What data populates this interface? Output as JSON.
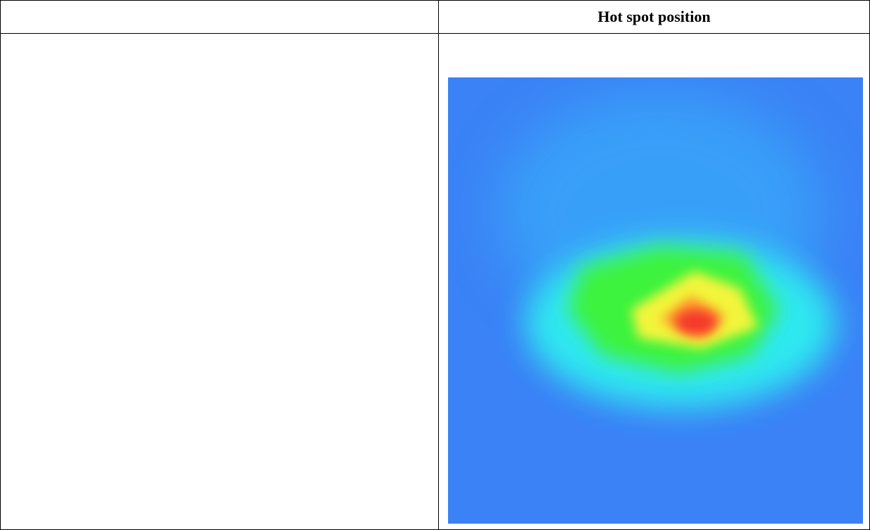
{
  "table": {
    "header_left": "",
    "header_right": "Hot spot position"
  },
  "heatmap": {
    "colors": {
      "background": "#3a82f6",
      "cool": "#38b8fa",
      "cyan": "#2ee8f0",
      "green": "#3cf33c",
      "yellow": "#f2f53a",
      "orange": "#ff9a2a",
      "red": "#f5382a"
    }
  }
}
